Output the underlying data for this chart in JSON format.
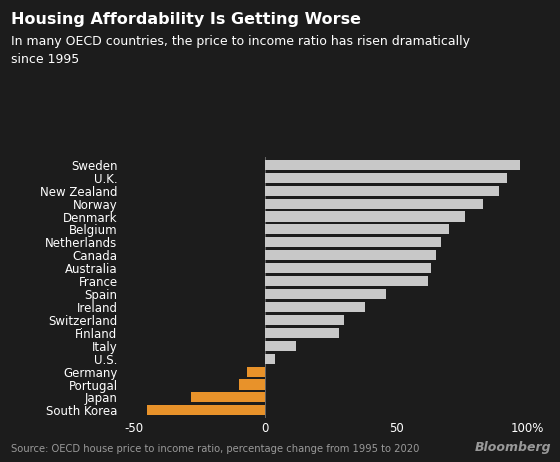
{
  "title": "Housing Affordability Is Getting Worse",
  "subtitle": "In many OECD countries, the price to income ratio has risen dramatically\nsince 1995",
  "source": "Source: OECD house price to income ratio, percentage change from 1995 to 2020",
  "watermark": "Bloomberg",
  "categories": [
    "Sweden",
    "U.K.",
    "New Zealand",
    "Norway",
    "Denmark",
    "Belgium",
    "Netherlands",
    "Canada",
    "Australia",
    "France",
    "Spain",
    "Ireland",
    "Switzerland",
    "Finland",
    "Italy",
    "U.S.",
    "Germany",
    "Portugal",
    "Japan",
    "South Korea"
  ],
  "values": [
    97,
    92,
    89,
    83,
    76,
    70,
    67,
    65,
    63,
    62,
    46,
    38,
    30,
    28,
    12,
    4,
    -7,
    -10,
    -28,
    -45
  ],
  "colors": [
    "#c8c8c8",
    "#c8c8c8",
    "#c8c8c8",
    "#c8c8c8",
    "#c8c8c8",
    "#c8c8c8",
    "#c8c8c8",
    "#c8c8c8",
    "#c8c8c8",
    "#c8c8c8",
    "#c8c8c8",
    "#c8c8c8",
    "#c8c8c8",
    "#c8c8c8",
    "#c8c8c8",
    "#c8c8c8",
    "#e8922a",
    "#e8922a",
    "#e8922a",
    "#e8922a"
  ],
  "xlim": [
    -55,
    108
  ],
  "xticks": [
    -50,
    0,
    50,
    100
  ],
  "xticklabels": [
    "-50",
    "0",
    "50",
    "100%"
  ],
  "background_color": "#1c1c1c",
  "header_color": "#1c1c1c",
  "text_color": "#ffffff",
  "source_color": "#999999",
  "title_fontsize": 11.5,
  "subtitle_fontsize": 9,
  "label_fontsize": 8.5,
  "tick_fontsize": 8.5,
  "bar_height": 0.78
}
